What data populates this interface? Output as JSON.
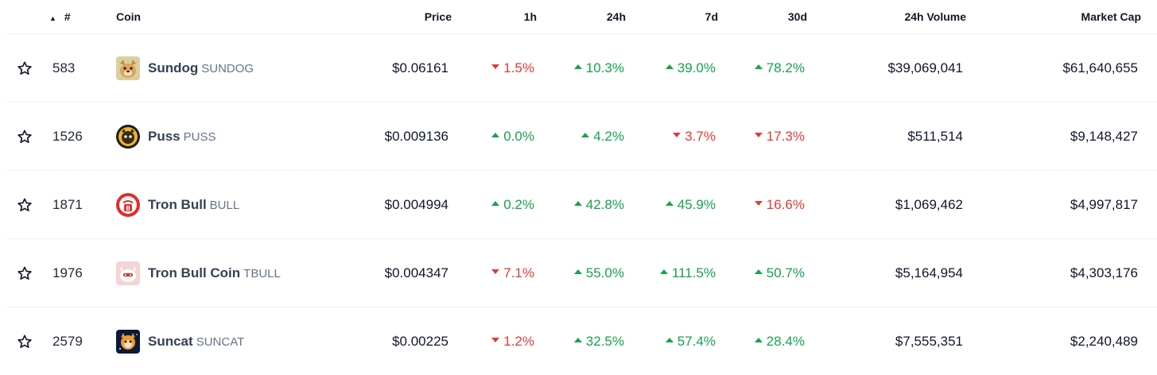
{
  "header": {
    "rank": "#",
    "coin": "Coin",
    "price": "Price",
    "h1": "1h",
    "h24": "24h",
    "d7": "7d",
    "d30": "30d",
    "volume": "24h Volume",
    "market_cap": "Market Cap"
  },
  "colors": {
    "up": "#16a34a",
    "down": "#e53935"
  },
  "rows": [
    {
      "rank": "583",
      "name": "Sundog",
      "symbol": "SUNDOG",
      "icon": "sundog-logo-icon",
      "price": "$0.06161",
      "h1": "1.5%",
      "h1_dir": "down",
      "h24": "10.3%",
      "h24_dir": "up",
      "d7": "39.0%",
      "d7_dir": "up",
      "d30": "78.2%",
      "d30_dir": "up",
      "volume": "$39,069,041",
      "market_cap": "$61,640,655"
    },
    {
      "rank": "1526",
      "name": "Puss",
      "symbol": "PUSS",
      "icon": "puss-logo-icon",
      "price": "$0.009136",
      "h1": "0.0%",
      "h1_dir": "up",
      "h24": "4.2%",
      "h24_dir": "up",
      "d7": "3.7%",
      "d7_dir": "down",
      "d30": "17.3%",
      "d30_dir": "down",
      "volume": "$511,514",
      "market_cap": "$9,148,427"
    },
    {
      "rank": "1871",
      "name": "Tron Bull",
      "symbol": "BULL",
      "icon": "tron-bull-logo-icon",
      "price": "$0.004994",
      "h1": "0.2%",
      "h1_dir": "up",
      "h24": "42.8%",
      "h24_dir": "up",
      "d7": "45.9%",
      "d7_dir": "up",
      "d30": "16.6%",
      "d30_dir": "down",
      "volume": "$1,069,462",
      "market_cap": "$4,997,817"
    },
    {
      "rank": "1976",
      "name": "Tron Bull Coin",
      "symbol": "TBULL",
      "icon": "tron-bull-coin-logo-icon",
      "price": "$0.004347",
      "h1": "7.1%",
      "h1_dir": "down",
      "h24": "55.0%",
      "h24_dir": "up",
      "d7": "111.5%",
      "d7_dir": "up",
      "d30": "50.7%",
      "d30_dir": "up",
      "volume": "$5,164,954",
      "market_cap": "$4,303,176"
    },
    {
      "rank": "2579",
      "name": "Suncat",
      "symbol": "SUNCAT",
      "icon": "suncat-logo-icon",
      "price": "$0.00225",
      "h1": "1.2%",
      "h1_dir": "down",
      "h24": "32.5%",
      "h24_dir": "up",
      "d7": "57.4%",
      "d7_dir": "up",
      "d30": "28.4%",
      "d30_dir": "up",
      "volume": "$7,555,351",
      "market_cap": "$2,240,489"
    }
  ]
}
